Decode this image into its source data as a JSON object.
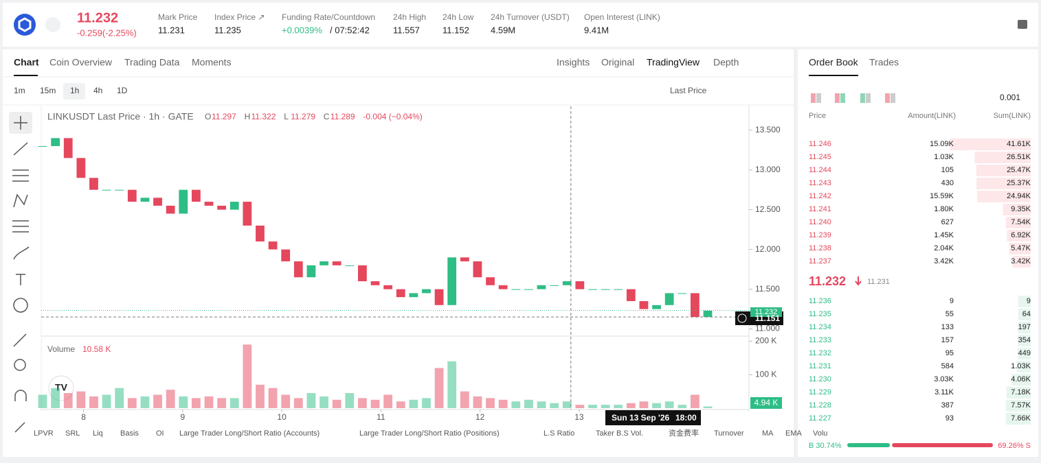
{
  "header": {
    "price": "11.232",
    "change": "-0.259(-2.25%)",
    "stats": [
      {
        "label": "Mark Price",
        "value": "11.231"
      },
      {
        "label": "Index Price ↗",
        "value": "11.235"
      },
      {
        "label": "Funding Rate/Countdown",
        "value": "+0.0039%",
        "extra": "/ 07:52:42"
      },
      {
        "label": "24h High",
        "value": "11.557"
      },
      {
        "label": "24h Low",
        "value": "11.152"
      },
      {
        "label": "24h Turnover (USDT)",
        "value": "4.59M"
      },
      {
        "label": "Open Interest (LINK)",
        "value": "9.41M"
      }
    ]
  },
  "chart_tabs": [
    "Chart",
    "Coin Overview",
    "Trading Data",
    "Moments"
  ],
  "view_tabs": [
    "Insights",
    "Original",
    "TradingView",
    "Depth"
  ],
  "intervals": [
    "1m",
    "15m",
    "1h",
    "4h",
    "1D"
  ],
  "price_source": "Last Price",
  "chart_data": {
    "type": "candlestick",
    "title": "LINKUSDT Last Price · 1h · GATE",
    "ohlc": [
      {
        "k": "O",
        "v": "11.297"
      },
      {
        "k": "H",
        "v": "11.322"
      },
      {
        "k": "L",
        "v": "11.279"
      },
      {
        "k": "C",
        "v": "11.289"
      },
      {
        "k": "",
        "v": "-0.004 (−0.04%)"
      }
    ],
    "close": [
      13.3,
      13.4,
      13.15,
      12.9,
      12.75,
      12.75,
      12.75,
      12.6,
      12.65,
      12.55,
      12.45,
      12.75,
      12.6,
      12.55,
      12.5,
      12.6,
      12.3,
      12.1,
      12.0,
      11.85,
      11.65,
      11.8,
      11.85,
      11.8,
      11.8,
      11.6,
      11.55,
      11.5,
      11.4,
      11.45,
      11.5,
      11.3,
      11.9,
      11.85,
      11.65,
      11.55,
      11.5,
      11.5,
      11.5,
      11.55,
      11.55,
      11.6,
      11.5,
      11.5,
      11.5,
      11.5,
      11.35,
      11.25,
      11.3,
      11.45,
      11.45,
      11.15,
      11.23
    ],
    "volume": [
      40,
      60,
      45,
      50,
      35,
      40,
      60,
      30,
      35,
      40,
      55,
      35,
      30,
      35,
      30,
      30,
      190,
      70,
      60,
      40,
      30,
      45,
      35,
      25,
      45,
      30,
      25,
      40,
      20,
      25,
      30,
      120,
      140,
      50,
      35,
      30,
      25,
      20,
      25,
      20,
      15,
      20,
      10,
      10,
      10,
      10,
      15,
      20,
      15,
      20,
      10,
      40,
      5
    ],
    "up_color": "#2ebd85",
    "down_color": "#e5475d",
    "ylim": [
      10.91,
      13.8
    ],
    "yticks": [
      {
        "value": 11,
        "label": "11.000"
      },
      {
        "value": 11.5,
        "label": "11.500"
      },
      {
        "value": 12,
        "label": "12.000"
      },
      {
        "value": 12.5,
        "label": "12.500"
      },
      {
        "value": 13,
        "label": "13.000"
      },
      {
        "value": 13.5,
        "label": "13.500"
      }
    ],
    "xlim": [
      0,
      52
    ],
    "xticks": [
      {
        "value": 3.2,
        "label": "8"
      },
      {
        "value": 10.95,
        "label": "9"
      },
      {
        "value": 18.7,
        "label": "10"
      },
      {
        "value": 26.45,
        "label": "11"
      },
      {
        "value": 34.2,
        "label": "12"
      },
      {
        "value": 41.95,
        "label": "13"
      }
    ],
    "volume_label": "Volume",
    "volume_value": "10.58 K",
    "volume_last": "4.94 K",
    "vlim": [
      0,
      205
    ],
    "vticks": [
      {
        "value": 100,
        "label": "100 K"
      },
      {
        "value": 200,
        "label": "200 K"
      }
    ],
    "last_price": {
      "value": 11.232,
      "label": "11.232"
    },
    "crosshair": {
      "value": 11.151,
      "label": "11.151",
      "x": 41.3,
      "date": "Sun 13 Sep '26",
      "time": "18:00"
    }
  },
  "indicators": [
    "LPVR",
    "SRL",
    "Liq",
    "Basis",
    "OI",
    "Large Trader Long/Short Ratio (Accounts)",
    "Large Trader Long/Short Ratio (Positions)",
    "L.S Ratio",
    "Taker B.S Vol.",
    "资金费率",
    "Turnover",
    "MA",
    "EMA",
    "Volu"
  ],
  "order_book": {
    "tabs": [
      "Order Book",
      "Trades"
    ],
    "precision": "0.001",
    "columns": [
      "Price",
      "Amount(LINK)",
      "Sum(LINK)"
    ],
    "asks": [
      [
        "11.246",
        "15.09K",
        {
          "value": 41.61,
          "label": "41.61K"
        }
      ],
      [
        "11.245",
        "1.03K",
        {
          "value": 26.51,
          "label": "26.51K"
        }
      ],
      [
        "11.244",
        "105",
        {
          "value": 25.47,
          "label": "25.47K"
        }
      ],
      [
        "11.243",
        "430",
        {
          "value": 25.37,
          "label": "25.37K"
        }
      ],
      [
        "11.242",
        "15.59K",
        {
          "value": 24.94,
          "label": "24.94K"
        }
      ],
      [
        "11.241",
        "1.80K",
        {
          "value": 9.35,
          "label": "9.35K"
        }
      ],
      [
        "11.240",
        "627",
        {
          "value": 7.54,
          "label": "7.54K"
        }
      ],
      [
        "11.239",
        "1.45K",
        {
          "value": 6.92,
          "label": "6.92K"
        }
      ],
      [
        "11.238",
        "2.04K",
        {
          "value": 5.47,
          "label": "5.47K"
        }
      ],
      [
        "11.237",
        "3.42K",
        {
          "value": 3.42,
          "label": "3.42K"
        }
      ]
    ],
    "mid": "11.232",
    "mid_mark": "11.231",
    "bids": [
      [
        "11.236",
        "9",
        {
          "value": 0.009,
          "label": "9"
        }
      ],
      [
        "11.235",
        "55",
        {
          "value": 0.064,
          "label": "64"
        }
      ],
      [
        "11.234",
        "133",
        {
          "value": 0.197,
          "label": "197"
        }
      ],
      [
        "11.233",
        "157",
        {
          "value": 0.354,
          "label": "354"
        }
      ],
      [
        "11.232",
        "95",
        {
          "value": 0.449,
          "label": "449"
        }
      ],
      [
        "11.231",
        "584",
        {
          "value": 1.03,
          "label": "1.03K"
        }
      ],
      [
        "11.230",
        "3.03K",
        {
          "value": 4.06,
          "label": "4.06K"
        }
      ],
      [
        "11.229",
        "3.11K",
        {
          "value": 7.18,
          "label": "7.18K"
        }
      ],
      [
        "11.228",
        "387",
        {
          "value": 7.57,
          "label": "7.57K"
        }
      ],
      [
        "11.227",
        "93",
        {
          "value": 7.66,
          "label": "7.66K"
        }
      ]
    ],
    "buy_ratio": {
      "value": 30.74,
      "label": "B 30.74%"
    },
    "sell_ratio": {
      "value": 69.26,
      "label": "69.26% S"
    }
  }
}
